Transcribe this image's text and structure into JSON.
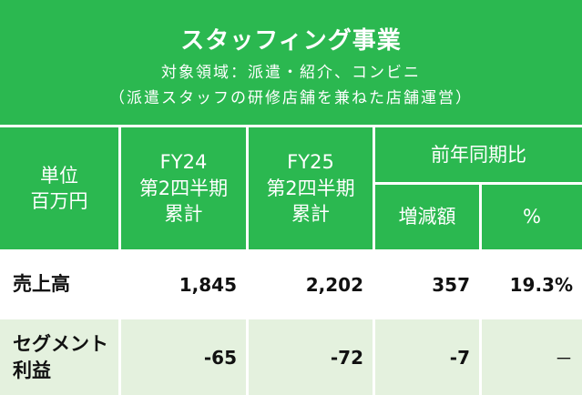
{
  "banner": {
    "title": "スタッフィング事業",
    "line1": "対象領域：派遣・紹介、コンビニ",
    "line2": "（派遣スタッフの研修店舗を兼ねた店舗運営）"
  },
  "header": {
    "unit_line1": "単位",
    "unit_line2": "百万円",
    "fy24_line1": "FY24",
    "fy24_line2": "第2四半期",
    "fy24_line3": "累計",
    "fy25_line1": "FY25",
    "fy25_line2": "第2四半期",
    "fy25_line3": "累計",
    "yoy": "前年同期比",
    "change": "増減額",
    "percent": "%"
  },
  "rows": [
    {
      "label": "売上高",
      "fy24": "1,845",
      "fy25": "2,202",
      "change": "357",
      "percent": "19.3%"
    },
    {
      "label_line1": "セグメント",
      "label_line2": "利益",
      "fy24": "-65",
      "fy25": "-72",
      "change": "-7",
      "percent": "－"
    }
  ],
  "colors": {
    "green": "#2bb850",
    "light_green": "#e4f1de"
  }
}
